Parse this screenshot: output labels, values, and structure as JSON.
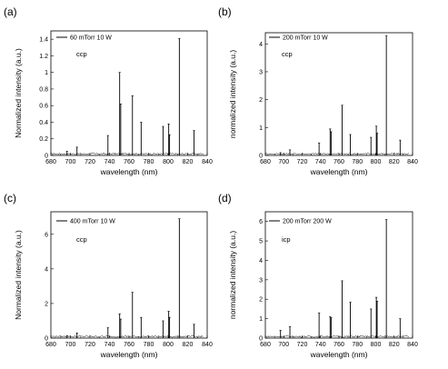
{
  "chart_data": [
    {
      "type": "line",
      "panel_label": "(a)",
      "xlabel": "wavelength (nm)",
      "ylabel": "Normalized intensity (a.u.)",
      "xlim": [
        680,
        840
      ],
      "ylim": [
        0,
        1.5
      ],
      "xticks": [
        680,
        700,
        720,
        740,
        760,
        780,
        800,
        820,
        840
      ],
      "yticks": [
        0.0,
        0.2,
        0.4,
        0.6,
        0.8,
        1.0,
        1.2,
        1.4
      ],
      "legend_entry": "60 mTorr 10 W",
      "annotation": "ccp",
      "series": [
        {
          "x": [
            696.5,
            706.7,
            738.4,
            750.4,
            751.5,
            763.5,
            772.4,
            794.8,
            800.6,
            801.5,
            811.5,
            826.5
          ],
          "values": [
            0.05,
            0.1,
            0.24,
            1.0,
            0.62,
            0.72,
            0.4,
            0.35,
            0.38,
            0.25,
            1.41,
            0.3
          ]
        }
      ]
    },
    {
      "type": "line",
      "panel_label": "(b)",
      "xlabel": "wavelength (nm)",
      "ylabel": "normalized intensity (a.u.)",
      "xlim": [
        680,
        840
      ],
      "ylim": [
        0,
        4.4
      ],
      "xticks": [
        680,
        700,
        720,
        740,
        760,
        780,
        800,
        820,
        840
      ],
      "yticks": [
        0,
        1,
        2,
        3,
        4
      ],
      "legend_entry": "200 mTorr 10 W",
      "annotation": "ccp",
      "series": [
        {
          "x": [
            696.5,
            706.7,
            738.4,
            750.4,
            751.5,
            763.5,
            772.4,
            794.8,
            800.6,
            801.5,
            811.5,
            826.5
          ],
          "values": [
            0.1,
            0.2,
            0.45,
            0.95,
            0.85,
            1.8,
            0.75,
            0.65,
            1.05,
            0.8,
            4.3,
            0.55
          ]
        }
      ]
    },
    {
      "type": "line",
      "panel_label": "(c)",
      "xlabel": "wavelength (nm)",
      "ylabel": "Normalized intensity (a.u.)",
      "xlim": [
        680,
        840
      ],
      "ylim": [
        0,
        7.3
      ],
      "xticks": [
        680,
        700,
        720,
        740,
        760,
        780,
        800,
        820,
        840
      ],
      "yticks": [
        0,
        2,
        4,
        6
      ],
      "legend_entry": "400 mTorr 10 W",
      "annotation": "ccp",
      "series": [
        {
          "x": [
            696.5,
            706.7,
            738.4,
            750.4,
            751.5,
            763.5,
            772.4,
            794.8,
            800.6,
            801.5,
            811.5,
            826.5
          ],
          "values": [
            0.15,
            0.3,
            0.6,
            1.4,
            1.1,
            2.65,
            1.2,
            1.0,
            1.55,
            1.2,
            6.9,
            0.8
          ]
        }
      ]
    },
    {
      "type": "line",
      "panel_label": "(d)",
      "xlabel": "wavelength (nm)",
      "ylabel": "normalized intensity (a.u.)",
      "xlim": [
        680,
        840
      ],
      "ylim": [
        0,
        6.5
      ],
      "xticks": [
        680,
        700,
        720,
        740,
        760,
        780,
        800,
        820,
        840
      ],
      "yticks": [
        0,
        1,
        2,
        3,
        4,
        5,
        6
      ],
      "legend_entry": "200 mTorr 200 W",
      "annotation": "icp",
      "series": [
        {
          "x": [
            696.5,
            706.7,
            738.4,
            750.4,
            751.5,
            763.5,
            772.4,
            794.8,
            800.6,
            801.5,
            811.5,
            826.5
          ],
          "values": [
            0.4,
            0.6,
            1.3,
            1.1,
            1.05,
            2.95,
            1.85,
            1.5,
            2.1,
            1.9,
            6.1,
            1.0
          ]
        }
      ]
    }
  ]
}
